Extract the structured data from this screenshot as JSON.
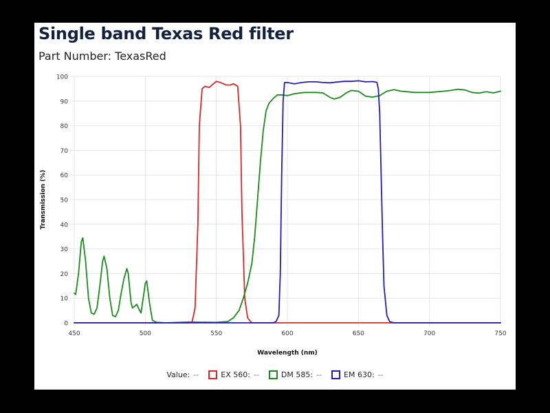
{
  "title": "Single band Texas Red filter",
  "subtitle": "Part Number: TexasRed",
  "legend": {
    "value_label": "Value:",
    "placeholder": "--",
    "items": [
      {
        "label": "EX 560:",
        "color": "#d62828"
      },
      {
        "label": "DM 585:",
        "color": "#1a8a1a"
      },
      {
        "label": "EM 630:",
        "color": "#1f1fb5"
      }
    ]
  },
  "chart_data": {
    "type": "line",
    "xlabel": "Wavelength (nm)",
    "ylabel": "Transmission (%)",
    "xlim": [
      450,
      750
    ],
    "ylim": [
      0,
      100
    ],
    "xticks": [
      450,
      500,
      550,
      600,
      650,
      700,
      750
    ],
    "yticks": [
      0,
      10,
      20,
      30,
      40,
      50,
      60,
      70,
      80,
      90,
      100
    ],
    "grid": true,
    "legend_position": "bottom",
    "series": [
      {
        "name": "EX 560",
        "color": "#d62828",
        "points": [
          [
            450,
            0
          ],
          [
            530,
            0
          ],
          [
            533,
            0.5
          ],
          [
            535,
            6
          ],
          [
            537,
            40
          ],
          [
            538,
            80
          ],
          [
            540,
            95
          ],
          [
            542,
            96
          ],
          [
            545,
            95.5
          ],
          [
            548,
            97
          ],
          [
            550,
            98
          ],
          [
            553,
            97.5
          ],
          [
            557,
            96.5
          ],
          [
            560,
            96.5
          ],
          [
            562,
            97
          ],
          [
            565,
            96
          ],
          [
            567,
            80
          ],
          [
            568,
            45
          ],
          [
            570,
            10
          ],
          [
            572,
            2
          ],
          [
            575,
            0
          ],
          [
            750,
            0
          ]
        ]
      },
      {
        "name": "DM 585",
        "color": "#1a8a1a",
        "points": [
          [
            450,
            12
          ],
          [
            451,
            11.5
          ],
          [
            453,
            20
          ],
          [
            455,
            33
          ],
          [
            456,
            34.5
          ],
          [
            458,
            25
          ],
          [
            460,
            10
          ],
          [
            462,
            4
          ],
          [
            464,
            3.5
          ],
          [
            466,
            6
          ],
          [
            468,
            15
          ],
          [
            470,
            25
          ],
          [
            471,
            27
          ],
          [
            473,
            22
          ],
          [
            475,
            10
          ],
          [
            477,
            3
          ],
          [
            479,
            2.5
          ],
          [
            481,
            5
          ],
          [
            483,
            12
          ],
          [
            485,
            18
          ],
          [
            487,
            22
          ],
          [
            488,
            20
          ],
          [
            490,
            8
          ],
          [
            491,
            6
          ],
          [
            493,
            7
          ],
          [
            494,
            7.5
          ],
          [
            496,
            5
          ],
          [
            497,
            4
          ],
          [
            499,
            12
          ],
          [
            500,
            16
          ],
          [
            501,
            17
          ],
          [
            503,
            8
          ],
          [
            505,
            1
          ],
          [
            508,
            0.2
          ],
          [
            515,
            0
          ],
          [
            530,
            0.3
          ],
          [
            550,
            0.2
          ],
          [
            558,
            0.5
          ],
          [
            562,
            2
          ],
          [
            566,
            5
          ],
          [
            569,
            10
          ],
          [
            572,
            16
          ],
          [
            575,
            24
          ],
          [
            577,
            35
          ],
          [
            579,
            50
          ],
          [
            581,
            65
          ],
          [
            583,
            78
          ],
          [
            585,
            86
          ],
          [
            587,
            89
          ],
          [
            590,
            91
          ],
          [
            593,
            92.5
          ],
          [
            596,
            92.5
          ],
          [
            600,
            92.2
          ],
          [
            605,
            93
          ],
          [
            612,
            93.5
          ],
          [
            620,
            93.5
          ],
          [
            625,
            93.3
          ],
          [
            630,
            91.5
          ],
          [
            633,
            90.8
          ],
          [
            637,
            91.5
          ],
          [
            642,
            93.5
          ],
          [
            645,
            94.3
          ],
          [
            650,
            94
          ],
          [
            655,
            92
          ],
          [
            660,
            91.6
          ],
          [
            665,
            92.2
          ],
          [
            670,
            94
          ],
          [
            675,
            94.6
          ],
          [
            680,
            94
          ],
          [
            690,
            93.5
          ],
          [
            700,
            93.5
          ],
          [
            710,
            94
          ],
          [
            715,
            94.3
          ],
          [
            720,
            94.8
          ],
          [
            725,
            94.5
          ],
          [
            730,
            93.5
          ],
          [
            735,
            93.2
          ],
          [
            740,
            93.8
          ],
          [
            745,
            93.3
          ],
          [
            750,
            94
          ]
        ]
      },
      {
        "name": "EM 630",
        "color": "#1f1fb5",
        "points": [
          [
            450,
            0
          ],
          [
            590,
            0
          ],
          [
            592,
            0.5
          ],
          [
            594,
            3
          ],
          [
            595,
            20
          ],
          [
            596,
            60
          ],
          [
            597,
            90
          ],
          [
            598,
            97.5
          ],
          [
            600,
            97.5
          ],
          [
            605,
            97
          ],
          [
            610,
            97.5
          ],
          [
            615,
            97.8
          ],
          [
            620,
            97.8
          ],
          [
            625,
            97.5
          ],
          [
            630,
            97.4
          ],
          [
            635,
            97.7
          ],
          [
            640,
            98
          ],
          [
            645,
            98
          ],
          [
            650,
            98.2
          ],
          [
            655,
            97.8
          ],
          [
            660,
            97.9
          ],
          [
            663,
            97.6
          ],
          [
            664,
            95
          ],
          [
            665,
            85
          ],
          [
            666,
            60
          ],
          [
            667,
            35
          ],
          [
            668,
            15
          ],
          [
            670,
            3
          ],
          [
            672,
            0.5
          ],
          [
            675,
            0
          ],
          [
            750,
            0
          ]
        ]
      }
    ]
  }
}
